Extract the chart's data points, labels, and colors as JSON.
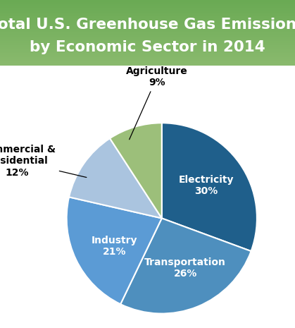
{
  "title_line1": "Total U.S. Greenhouse Gas Emissions",
  "title_line2": "by Economic Sector in 2014",
  "title_fontsize": 15.5,
  "title_color": "white",
  "title_bg_top": "#6aaa54",
  "title_bg_bottom": "#8aba6e",
  "sectors": [
    "Electricity",
    "Transportation",
    "Industry",
    "Commercial &\nResidential",
    "Agriculture"
  ],
  "values": [
    30,
    26,
    21,
    12,
    9
  ],
  "colors": [
    "#1f5f8b",
    "#4e8fbe",
    "#5b9bd5",
    "#aac4df",
    "#9cbf7a"
  ],
  "startangle": 90,
  "bg_color": "white",
  "figsize": [
    4.19,
    4.65
  ],
  "dpi": 100,
  "inside_label_r": 0.58,
  "inside_label_fontsize": 10,
  "outside_label_fontsize": 10,
  "wedge_edgecolor": "white",
  "wedge_linewidth": 1.5
}
